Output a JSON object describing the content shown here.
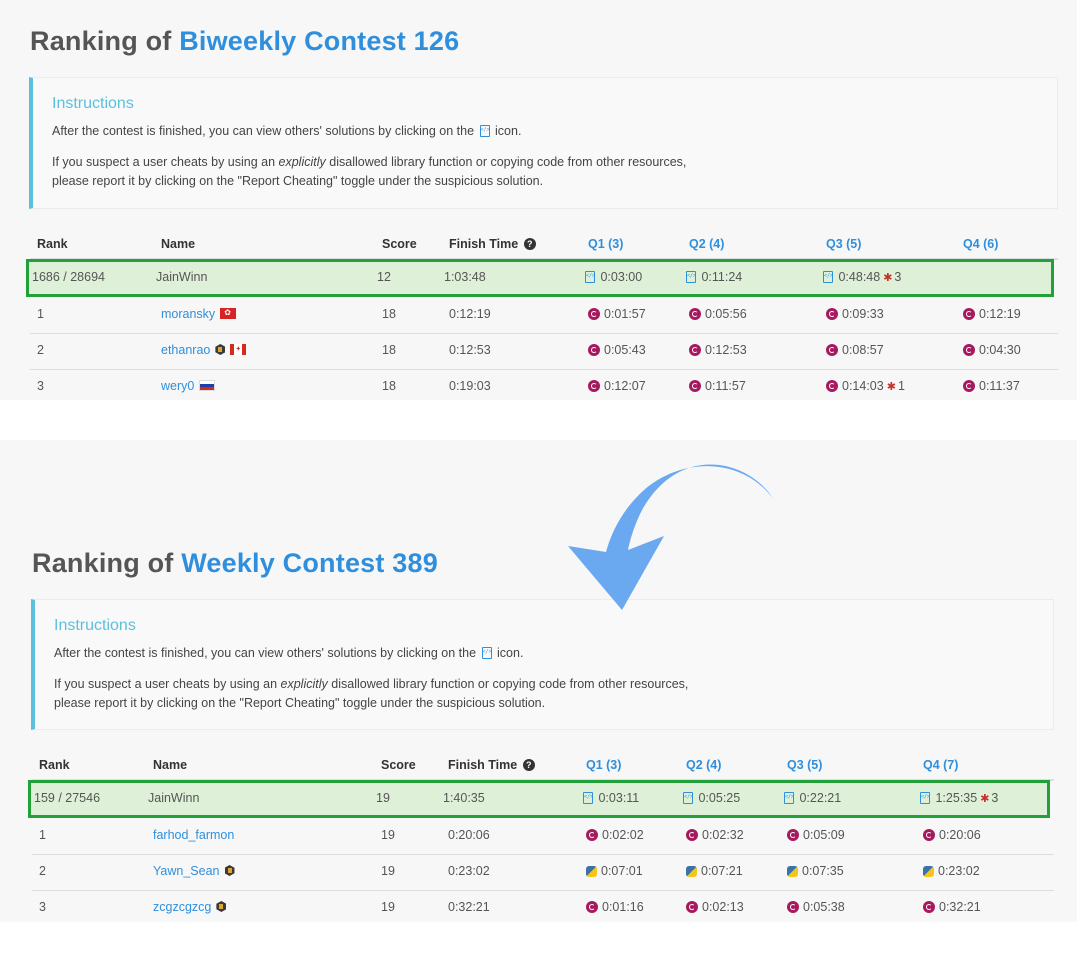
{
  "top": {
    "title_prefix": "Ranking of",
    "contest_name": "Biweekly Contest 126",
    "instructions": {
      "heading": "Instructions",
      "line1_a": "After the contest is finished, you can view others' solutions by clicking on the",
      "line1_b": "icon.",
      "line2_a": "If you suspect a user cheats by using an",
      "line2_em": "explicitly",
      "line2_b": "disallowed library function or copying code from other resources,",
      "line3": "please report it by clicking on the \"Report Cheating\" toggle under the suspicious solution."
    },
    "headers": {
      "rank": "Rank",
      "name": "Name",
      "score": "Score",
      "finish": "Finish Time",
      "q1": "Q1 (3)",
      "q2": "Q2 (4)",
      "q3": "Q3 (5)",
      "q4": "Q4 (6)"
    },
    "my_row": {
      "rank": "1686 / 28694",
      "name": "JainWinn",
      "score": "12",
      "finish": "1:03:48",
      "q1": "0:03:00",
      "q2": "0:11:24",
      "q3": "0:48:48",
      "q3_wrong": "3",
      "q4": ""
    },
    "rows": [
      {
        "rank": "1",
        "name": "moransky",
        "flag": "hk",
        "score": "18",
        "finish": "0:12:19",
        "q1": "0:01:57",
        "q2": "0:05:56",
        "q3": "0:09:33",
        "q4": "0:12:19"
      },
      {
        "rank": "2",
        "name": "ethanrao",
        "flag": "ca",
        "score": "18",
        "finish": "0:12:53",
        "q1": "0:05:43",
        "q2": "0:12:53",
        "q3": "0:08:57",
        "q4": "0:04:30"
      },
      {
        "rank": "3",
        "name": "wery0",
        "flag": "ru",
        "score": "18",
        "finish": "0:19:03",
        "q1": "0:12:07",
        "q2": "0:11:57",
        "q3": "0:14:03",
        "q3_wrong": "1",
        "q4": "0:11:37"
      }
    ]
  },
  "bottom": {
    "title_prefix": "Ranking of",
    "contest_name": "Weekly Contest 389",
    "instructions": {
      "heading": "Instructions",
      "line1_a": "After the contest is finished, you can view others' solutions by clicking on the",
      "line1_b": "icon.",
      "line2_a": "If you suspect a user cheats by using an",
      "line2_em": "explicitly",
      "line2_b": "disallowed library function or copying code from other resources,",
      "line3": "please report it by clicking on the \"Report Cheating\" toggle under the suspicious solution."
    },
    "headers": {
      "rank": "Rank",
      "name": "Name",
      "score": "Score",
      "finish": "Finish Time",
      "q1": "Q1 (3)",
      "q2": "Q2 (4)",
      "q3": "Q3 (5)",
      "q4": "Q4 (7)"
    },
    "my_row": {
      "rank": "159 / 27546",
      "name": "JainWinn",
      "score": "19",
      "finish": "1:40:35",
      "q1": "0:03:11",
      "q2": "0:05:25",
      "q3": "0:22:21",
      "q4": "1:25:35",
      "q4_wrong": "3"
    },
    "rows": [
      {
        "rank": "1",
        "name": "farhod_farmon",
        "score": "19",
        "finish": "0:20:06",
        "q1": "0:02:02",
        "q2": "0:02:32",
        "q3": "0:05:09",
        "q4": "0:20:06"
      },
      {
        "rank": "2",
        "name": "Yawn_Sean",
        "score": "19",
        "finish": "0:23:02",
        "q1": "0:07:01",
        "q2": "0:07:21",
        "q3": "0:07:35",
        "q4": "0:23:02"
      },
      {
        "rank": "3",
        "name": "zcgzcgzcg",
        "score": "19",
        "finish": "0:32:21",
        "q1": "0:01:16",
        "q2": "0:02:13",
        "q3": "0:05:38",
        "q4": "0:32:21"
      }
    ]
  },
  "colors": {
    "accent": "#2f8fdc",
    "highlight_border": "#22a03a",
    "highlight_bg": "#dff0d8",
    "arrow": "#6aa8ef"
  }
}
